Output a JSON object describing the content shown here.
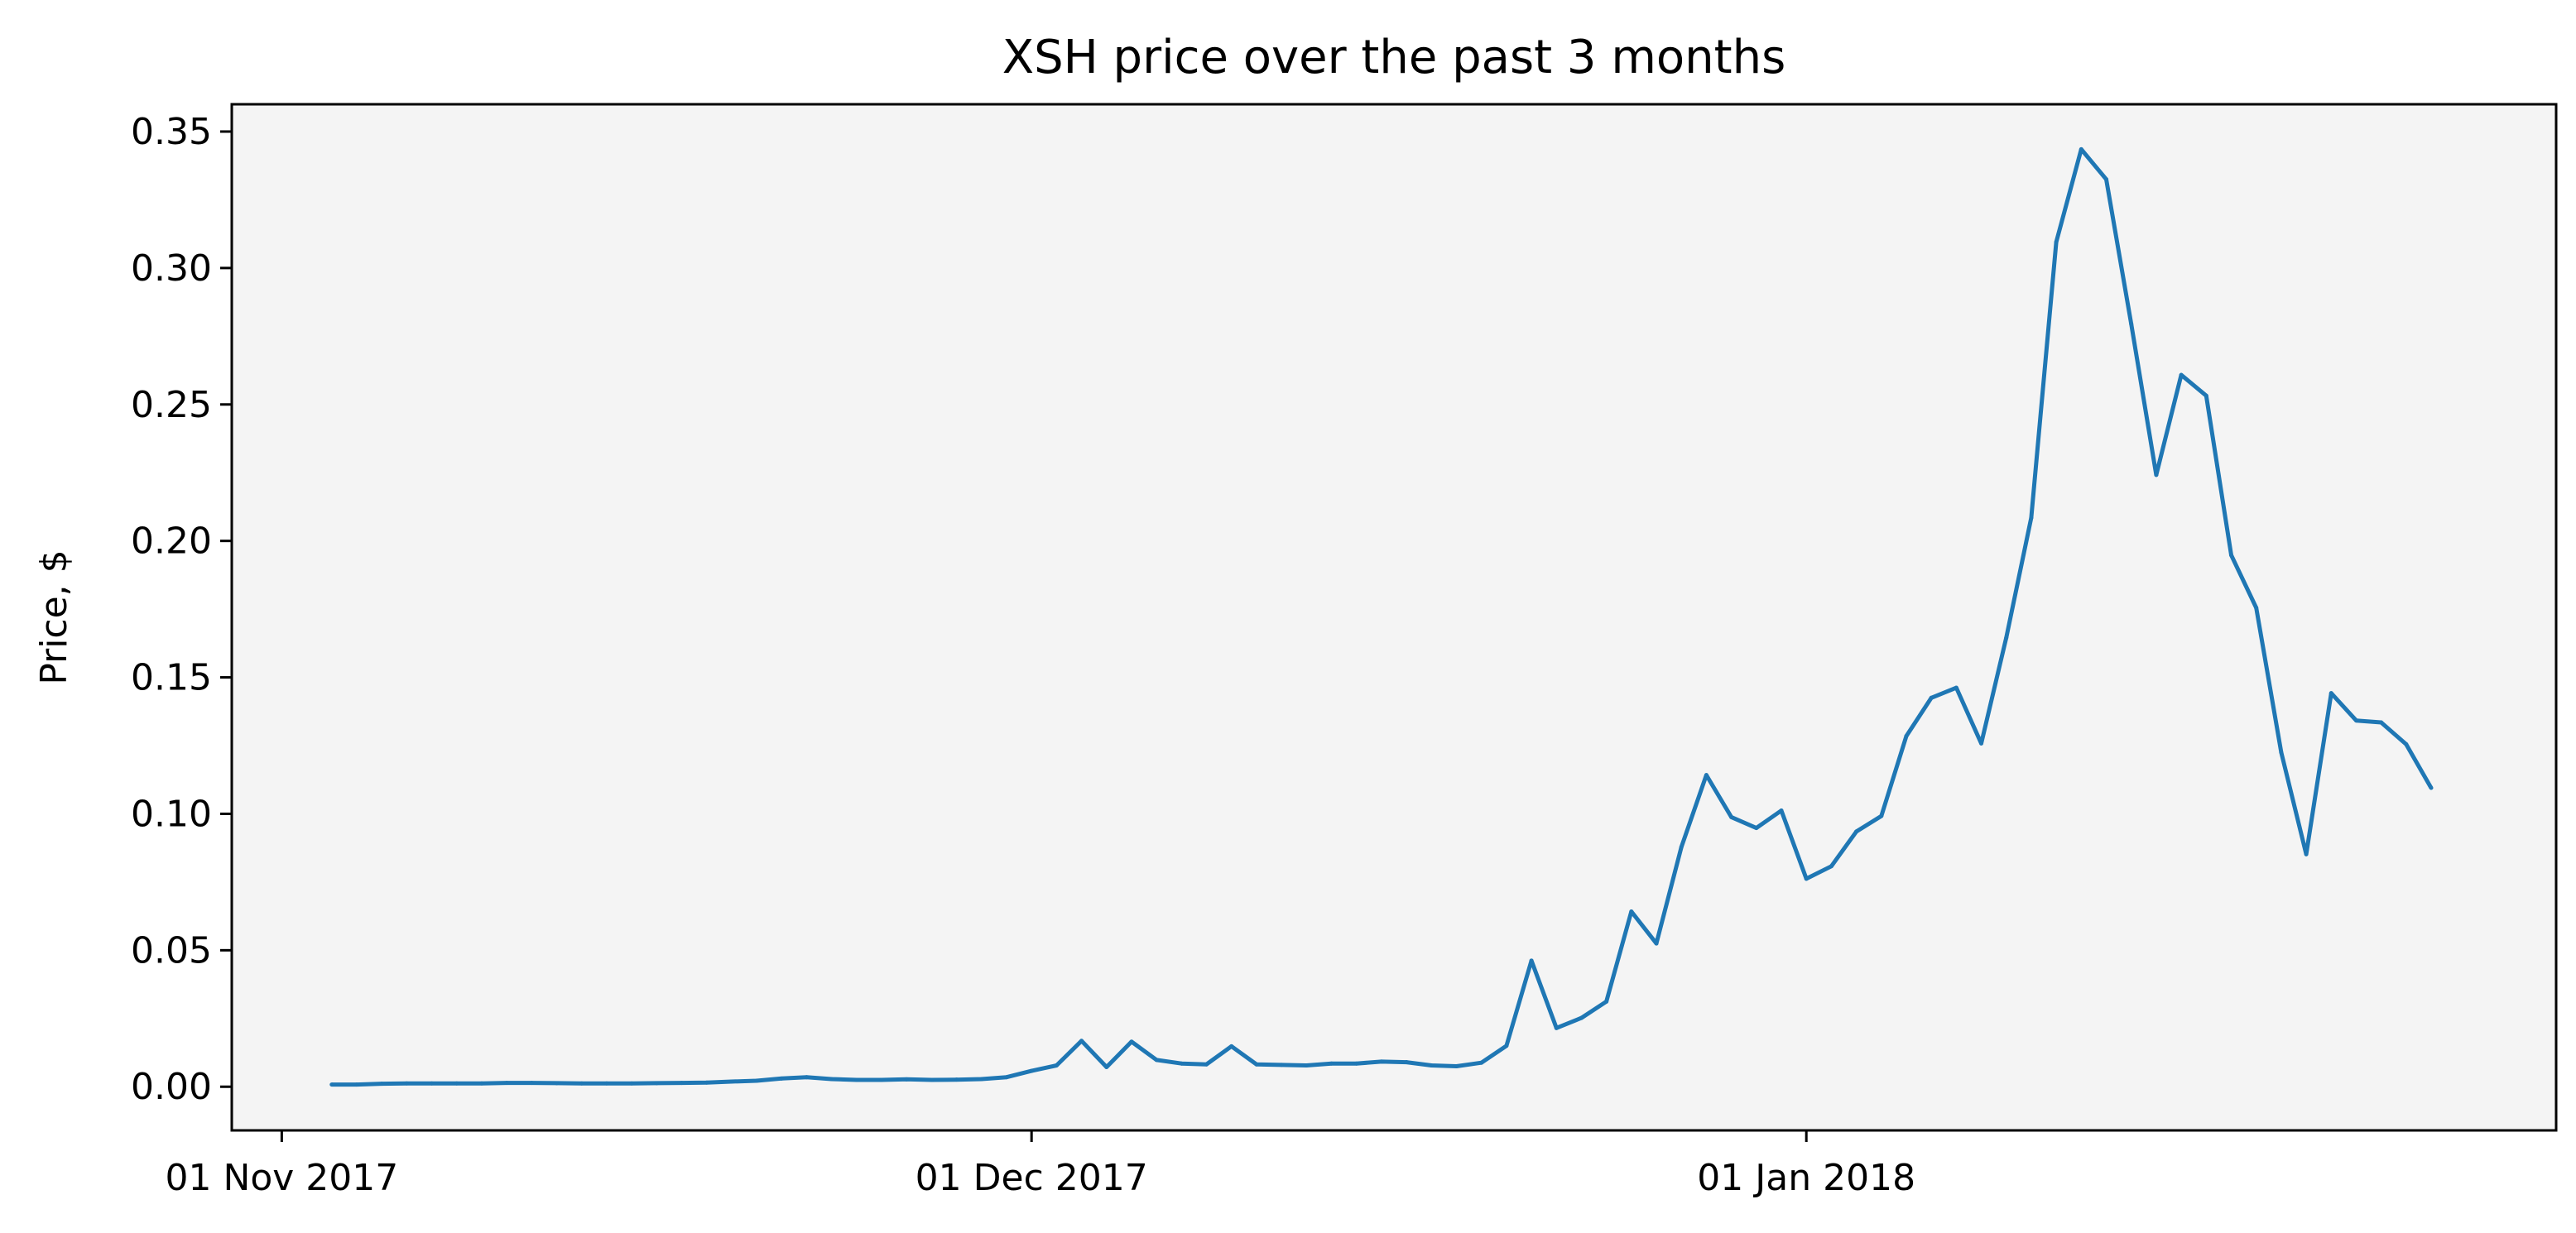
{
  "chart_data": {
    "type": "line",
    "title": "XSH price over the past 3 months",
    "xlabel": "",
    "ylabel": "Price, $",
    "ylim": [
      -0.016,
      0.36
    ],
    "xlim": [
      "2017-10-30",
      "2018-01-31"
    ],
    "yticks": [
      0.0,
      0.05,
      0.1,
      0.15,
      0.2,
      0.25,
      0.3,
      0.35
    ],
    "ytick_labels": [
      "0.00",
      "0.05",
      "0.10",
      "0.15",
      "0.20",
      "0.25",
      "0.30",
      "0.35"
    ],
    "xticks": [
      "2017-11-01",
      "2017-12-01",
      "2018-01-01"
    ],
    "xtick_labels": [
      "01 Nov 2017",
      "01 Dec 2017",
      "01 Jan 2018"
    ],
    "grid": false,
    "colors": {
      "plot_background": "#f4f4f4",
      "line": "#1f77b4",
      "axes": "#000000"
    },
    "series": [
      {
        "x": [
          "2017-11-03",
          "2017-11-04",
          "2017-11-05",
          "2017-11-06",
          "2017-11-07",
          "2017-11-08",
          "2017-11-09",
          "2017-11-10",
          "2017-11-11",
          "2017-11-12",
          "2017-11-13",
          "2017-11-14",
          "2017-11-15",
          "2017-11-16",
          "2017-11-17",
          "2017-11-18",
          "2017-11-19",
          "2017-11-20",
          "2017-11-21",
          "2017-11-22",
          "2017-11-23",
          "2017-11-24",
          "2017-11-25",
          "2017-11-26",
          "2017-11-27",
          "2017-11-28",
          "2017-11-29",
          "2017-11-30",
          "2017-12-01",
          "2017-12-02",
          "2017-12-03",
          "2017-12-04",
          "2017-12-05",
          "2017-12-06",
          "2017-12-07",
          "2017-12-08",
          "2017-12-09",
          "2017-12-10",
          "2017-12-11",
          "2017-12-12",
          "2017-12-13",
          "2017-12-14",
          "2017-12-15",
          "2017-12-16",
          "2017-12-17",
          "2017-12-18",
          "2017-12-19",
          "2017-12-20",
          "2017-12-21",
          "2017-12-22",
          "2017-12-23",
          "2017-12-24",
          "2017-12-25",
          "2017-12-26",
          "2017-12-27",
          "2017-12-28",
          "2017-12-29",
          "2017-12-30",
          "2017-12-31",
          "2018-01-01",
          "2018-01-02",
          "2018-01-03",
          "2018-01-04",
          "2018-01-05",
          "2018-01-06",
          "2018-01-07",
          "2018-01-08",
          "2018-01-09",
          "2018-01-10",
          "2018-01-11",
          "2018-01-12",
          "2018-01-13",
          "2018-01-14",
          "2018-01-15",
          "2018-01-16",
          "2018-01-17",
          "2018-01-18",
          "2018-01-19",
          "2018-01-20",
          "2018-01-21",
          "2018-01-22",
          "2018-01-23",
          "2018-01-24",
          "2018-01-25",
          "2018-01-26"
        ],
        "values": [
          0.0008,
          0.0008,
          0.0011,
          0.0012,
          0.0012,
          0.0012,
          0.0012,
          0.0014,
          0.0014,
          0.0013,
          0.0012,
          0.0012,
          0.0012,
          0.0013,
          0.0014,
          0.0015,
          0.0019,
          0.0022,
          0.003,
          0.0035,
          0.0028,
          0.0025,
          0.0025,
          0.0027,
          0.0025,
          0.0026,
          0.0028,
          0.0035,
          0.0058,
          0.0078,
          0.0168,
          0.0072,
          0.0165,
          0.0098,
          0.0085,
          0.0082,
          0.0148,
          0.0082,
          0.008,
          0.0078,
          0.0085,
          0.0085,
          0.0092,
          0.009,
          0.0078,
          0.0075,
          0.0088,
          0.015,
          0.0462,
          0.0215,
          0.0252,
          0.0312,
          0.0642,
          0.0525,
          0.0878,
          0.1142,
          0.0988,
          0.0948,
          0.1012,
          0.0762,
          0.0808,
          0.0935,
          0.0992,
          0.1285,
          0.1425,
          0.1462,
          0.1258,
          0.1645,
          0.2085,
          0.3095,
          0.3435,
          0.3325,
          0.2795,
          0.2242,
          0.2608,
          0.2532,
          0.1948,
          0.1755,
          0.1225,
          0.0852,
          0.1442,
          0.1342,
          0.1335,
          0.1255,
          0.1095
        ]
      }
    ]
  }
}
